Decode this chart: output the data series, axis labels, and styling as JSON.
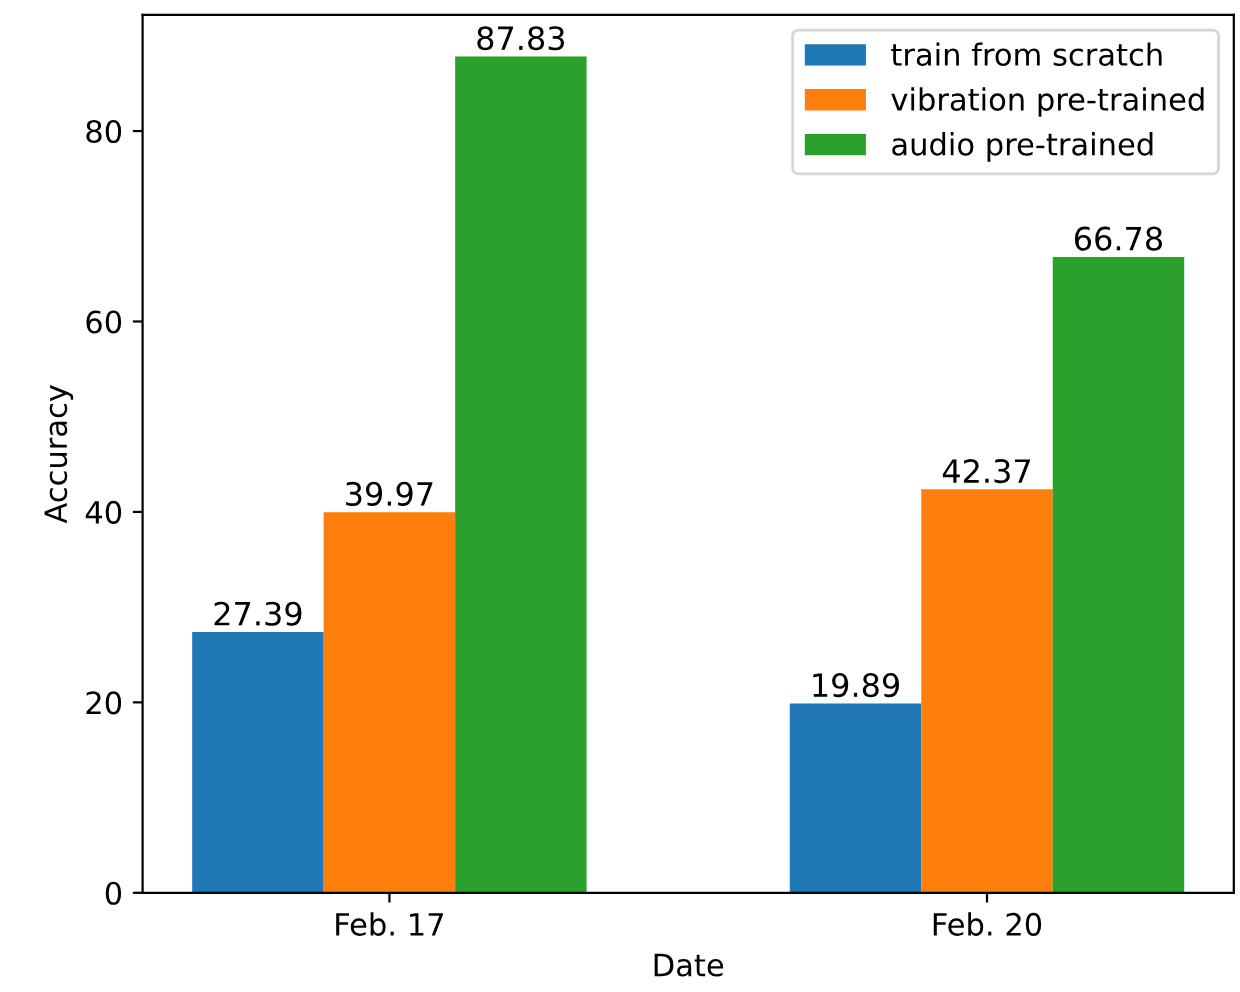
{
  "chart_data": {
    "type": "bar",
    "xlabel": "Date",
    "ylabel": "Accuracy",
    "categories": [
      "Feb. 17",
      "Feb. 20"
    ],
    "series": [
      {
        "name": "train from scratch",
        "color": "#1f77b4",
        "values": [
          27.39,
          19.89
        ]
      },
      {
        "name": "vibration pre-trained",
        "color": "#ff7f0e",
        "values": [
          39.97,
          42.37
        ]
      },
      {
        "name": "audio pre-trained",
        "color": "#2ca02c",
        "values": [
          87.83,
          66.78
        ]
      }
    ],
    "ylim": [
      0,
      92.2
    ],
    "yticks": [
      0,
      20,
      40,
      60,
      80
    ],
    "data_labels": true,
    "legend": "top right",
    "grid": false
  }
}
